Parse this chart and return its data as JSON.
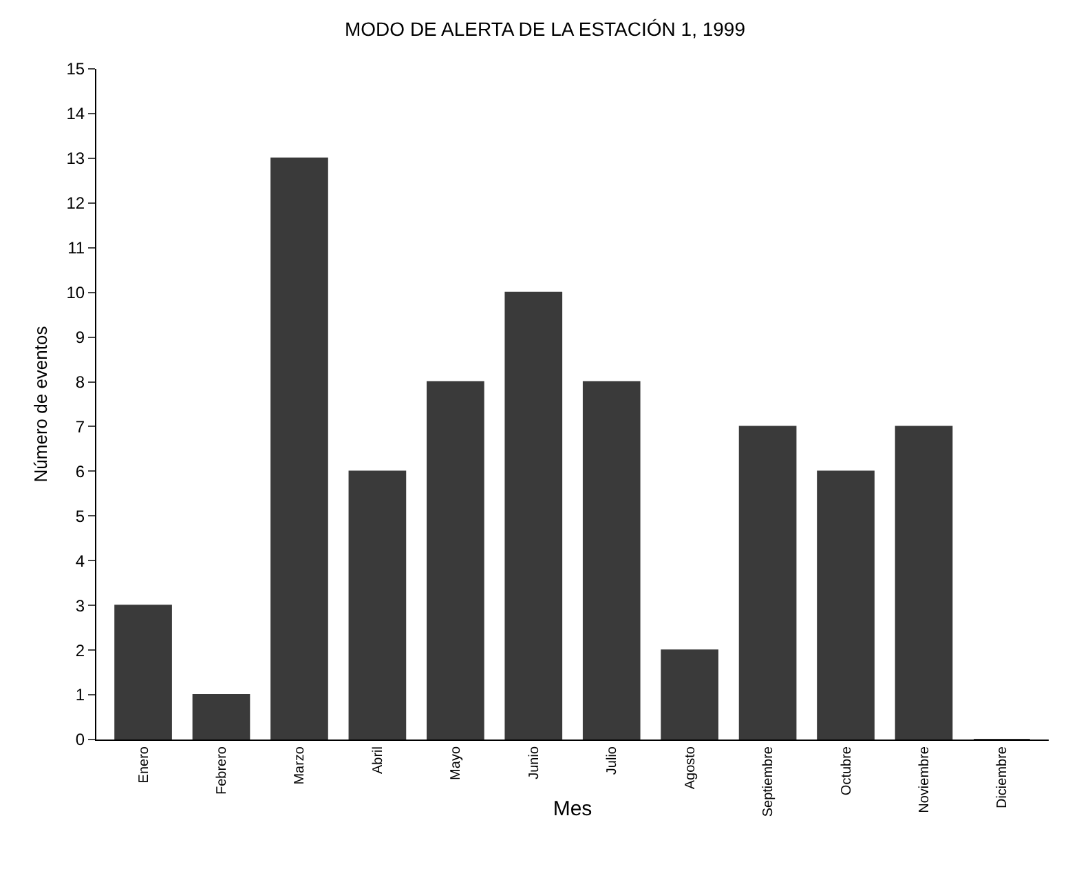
{
  "chart_data": {
    "type": "bar",
    "title": "MODO DE ALERTA DE LA ESTACIÓN 1, 1999",
    "xlabel": "Mes",
    "ylabel": "Número de eventos",
    "categories": [
      "Enero",
      "Febrero",
      "Marzo",
      "Abril",
      "Mayo",
      "Junio",
      "Julio",
      "Agosto",
      "Septiembre",
      "Octubre",
      "Noviembre",
      "Diciembre"
    ],
    "values": [
      3,
      1,
      13,
      6,
      8,
      10,
      8,
      2,
      7,
      6,
      7,
      0
    ],
    "color": "#3a3a3a",
    "ylim": [
      0,
      15
    ],
    "yticks": [
      0,
      1,
      2,
      3,
      4,
      5,
      6,
      7,
      8,
      9,
      10,
      11,
      12,
      13,
      14,
      15
    ]
  }
}
